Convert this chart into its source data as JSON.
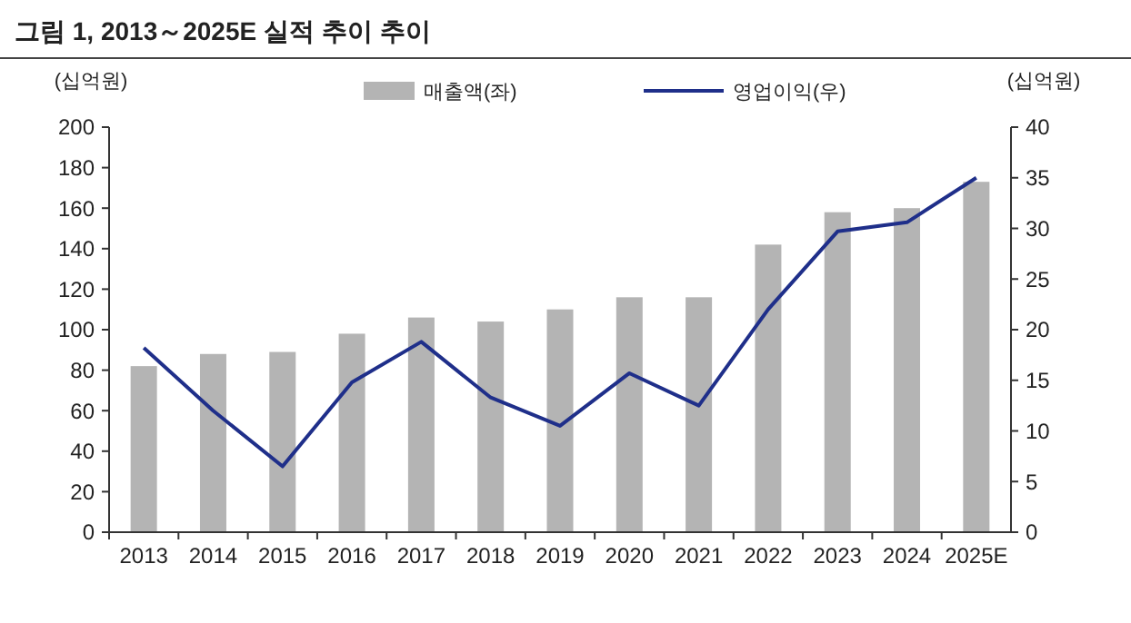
{
  "chart_data": {
    "type": "bar",
    "title": "그림 1, 2013～2025E 실적 추이 추이",
    "ylabel": "(십억원)",
    "y2label": "(십억원)",
    "categories": [
      "2013",
      "2014",
      "2015",
      "2016",
      "2017",
      "2018",
      "2019",
      "2020",
      "2021",
      "2022",
      "2023",
      "2024",
      "2025E"
    ],
    "series": [
      {
        "name": "매출액(좌)",
        "color": "#b4b4b4",
        "values": [
          82,
          88,
          89,
          98,
          106,
          104,
          110,
          116,
          116,
          142,
          158,
          160,
          173
        ]
      },
      {
        "name": "영업이익(우)",
        "type": "line",
        "axis": "y2",
        "color": "#1f2f8a",
        "values": [
          18.2,
          12,
          6.5,
          14.8,
          18.8,
          13.3,
          10.5,
          15.7,
          12.5,
          22,
          29.7,
          30.6,
          35
        ]
      }
    ],
    "ylim": [
      0,
      200
    ],
    "yticks": [
      0,
      20,
      40,
      60,
      80,
      100,
      120,
      140,
      160,
      180,
      200
    ],
    "y2lim": [
      0,
      40
    ],
    "y2ticks": [
      0,
      5,
      10,
      15,
      20,
      25,
      30,
      35,
      40
    ],
    "legend": "top",
    "grid": false,
    "marker": "none",
    "line_style": "solid"
  }
}
